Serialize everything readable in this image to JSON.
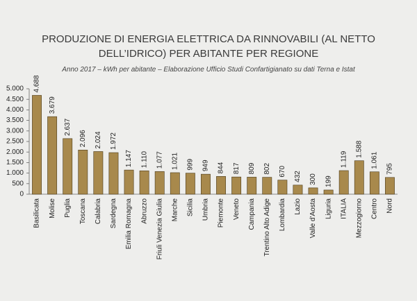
{
  "chart_data": {
    "type": "bar",
    "title": "PRODUZIONE DI ENERGIA ELETTRICA DA RINNOVABILI (AL NETTO DELL’IDRICO) PER ABITANTE PER REGIONE",
    "subtitle": "Anno 2017 – kWh per abitante – Elaborazione Ufficio Studi Confartigianato su dati Terna e Istat",
    "categories": [
      "Basilicata",
      "Molise",
      "Puglia",
      "Toscana",
      "Calabria",
      "Sardegna",
      "Emilia Romagna",
      "Abruzzo",
      "Friuli Venezia Giulia",
      "Marche",
      "Sicilia",
      "Umbria",
      "Piemonte",
      "Veneto",
      "Campania",
      "Trentino Alto Adige",
      "Lombardia",
      "Lazio",
      "Valle d'Aosta",
      "Liguria",
      "ITALIA",
      "Mezzogiorno",
      "Centro",
      "Nord"
    ],
    "values": [
      4688,
      3679,
      2637,
      2096,
      2024,
      1972,
      1147,
      1110,
      1077,
      1021,
      999,
      949,
      844,
      817,
      809,
      802,
      670,
      432,
      300,
      199,
      1119,
      1588,
      1061,
      795
    ],
    "value_labels": [
      "4.688",
      "3.679",
      "2.637",
      "2.096",
      "2.024",
      "1.972",
      "1.147",
      "1.110",
      "1.077",
      "1.021",
      "999",
      "949",
      "844",
      "817",
      "809",
      "802",
      "670",
      "432",
      "300",
      "199",
      "1.119",
      "1.588",
      "1.061",
      "795"
    ],
    "color": "#a8894c",
    "ylim": [
      0,
      5000
    ],
    "yticks": [
      0,
      500,
      {
        "value": 1000,
        "label": "1.000"
      },
      {
        "value": 1500,
        "label": "1.500"
      },
      {
        "value": 2000,
        "label": "2.000"
      },
      {
        "value": 2500,
        "label": "2.500"
      },
      {
        "value": 3000,
        "label": "3.000"
      },
      {
        "value": 3500,
        "label": "3.500"
      },
      {
        "value": 4000,
        "label": "4.000"
      },
      {
        "value": 4500,
        "label": "4.500"
      },
      {
        "value": 5000,
        "label": "5.000"
      }
    ],
    "grid": false
  }
}
